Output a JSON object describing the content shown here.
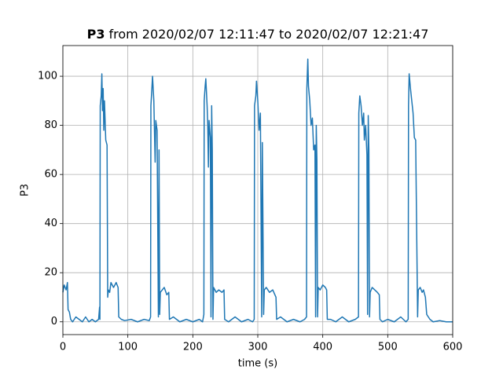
{
  "chart_data": {
    "type": "line",
    "title": [
      "P3",
      "from 2020/02/07 12:11:47 to 2020/02/07 12:21:47"
    ],
    "xlabel": "time (s)",
    "ylabel": "P3",
    "x": [
      0,
      2,
      5,
      7,
      8,
      10,
      12,
      15,
      20,
      25,
      30,
      35,
      40,
      45,
      50,
      55,
      56.5,
      57,
      57.5,
      59,
      60,
      61,
      62,
      63,
      64,
      66,
      68,
      69,
      70,
      72,
      74,
      78,
      82,
      85,
      86,
      90,
      95,
      105,
      115,
      125,
      133,
      135,
      135.5,
      137,
      138,
      140,
      142,
      143,
      145,
      147,
      148,
      149,
      150,
      153,
      156,
      160,
      163,
      164,
      170,
      180,
      190,
      200,
      210,
      215,
      217,
      217.5,
      219,
      220,
      222,
      223,
      224,
      225,
      227,
      228,
      229,
      230,
      231,
      232,
      236,
      240,
      245,
      248,
      249,
      255,
      265,
      275,
      285,
      292,
      294.5,
      295,
      297,
      298,
      300,
      302,
      304,
      306,
      307,
      309,
      310,
      313,
      318,
      323,
      328,
      329,
      335,
      345,
      355,
      365,
      372,
      375,
      375.5,
      377,
      378,
      380,
      382,
      384,
      386,
      388,
      389,
      390,
      391,
      392,
      393,
      396,
      400,
      404,
      406,
      407,
      412,
      420,
      430,
      440,
      450,
      455,
      455.5,
      457,
      459,
      461,
      463,
      464,
      466,
      468,
      469,
      470,
      471,
      472,
      473,
      476,
      480,
      484,
      487,
      488,
      492,
      500,
      510,
      520,
      528,
      531.5,
      532,
      533,
      535,
      537,
      539,
      541,
      543,
      546,
      547,
      550,
      553,
      555,
      558,
      560,
      565,
      570,
      580,
      590,
      600
    ],
    "series": [
      {
        "name": "P3",
        "color": "#1f77b4",
        "values": [
          12,
          15,
          13,
          16,
          5,
          4,
          1,
          0,
          2,
          1,
          0,
          2,
          0,
          1,
          0,
          1,
          6,
          1,
          88,
          92,
          101,
          86,
          95,
          78,
          90,
          74,
          72,
          10,
          13,
          12,
          16,
          14,
          16,
          14,
          2,
          1,
          0.5,
          1,
          0,
          1,
          0.5,
          2,
          88,
          95,
          100,
          90,
          65,
          82,
          78,
          2,
          70,
          3,
          12,
          13,
          14,
          11,
          12,
          1,
          2,
          0,
          1,
          0,
          1,
          0,
          3,
          90,
          96,
          99,
          88,
          80,
          63,
          82,
          75,
          2,
          88,
          70,
          1,
          14,
          12,
          13,
          12,
          13,
          1,
          0,
          2,
          0,
          1,
          0,
          1,
          88,
          92,
          98,
          90,
          78,
          85,
          2,
          73,
          3,
          13,
          14,
          12,
          13,
          10,
          1,
          2,
          0,
          1,
          0,
          1,
          2,
          95,
          107,
          96,
          90,
          80,
          83,
          70,
          72,
          2,
          80,
          66,
          2,
          14,
          13,
          15,
          14,
          13,
          1,
          1,
          0,
          2,
          0,
          1,
          2,
          85,
          92,
          88,
          80,
          85,
          74,
          80,
          68,
          3,
          84,
          70,
          2,
          12,
          14,
          13,
          12,
          11,
          1,
          0,
          1,
          0,
          2,
          0,
          1,
          88,
          101,
          95,
          90,
          85,
          75,
          74,
          2,
          13,
          14,
          12,
          13,
          10,
          3,
          1,
          0,
          0.5,
          0,
          0
        ]
      }
    ],
    "xlim": [
      0,
      600
    ],
    "ylim": [
      -5.2,
      112.5
    ],
    "xticks": [
      0,
      100,
      200,
      300,
      400,
      500,
      600
    ],
    "yticks": [
      0,
      20,
      40,
      60,
      80,
      100
    ],
    "grid": true
  }
}
